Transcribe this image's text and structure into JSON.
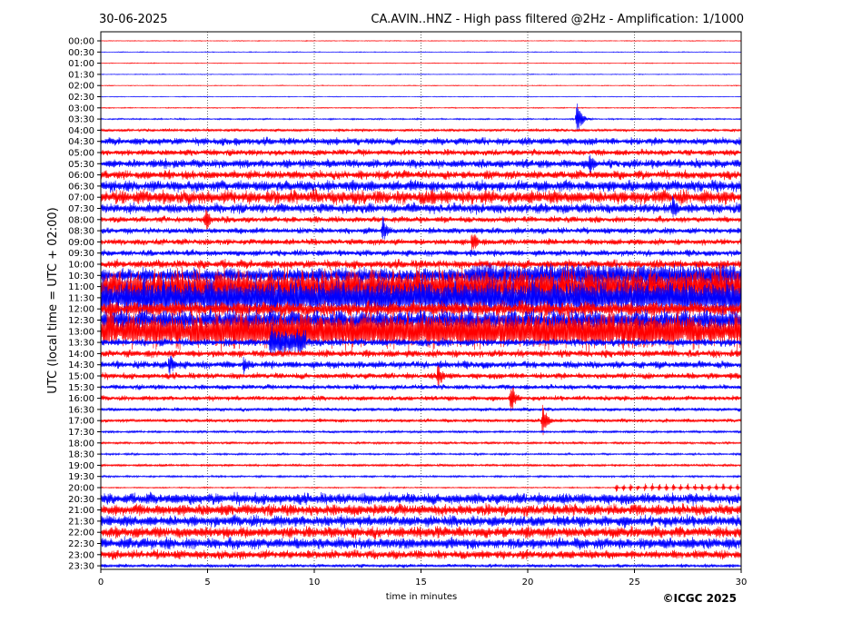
{
  "header": {
    "date": "30-06-2025",
    "title": "CA.AVIN..HNZ - High pass filtered @2Hz - Amplification: 1/1000"
  },
  "copyright": "©ICGC 2025",
  "chart_data": {
    "type": "line",
    "title": "CA.AVIN..HNZ - High pass filtered @2Hz - Amplification: 1/1000",
    "xlabel": "time in minutes",
    "ylabel": "UTC (local time = UTC + 02:00)",
    "xlim": [
      0,
      30
    ],
    "x_ticks": [
      "0",
      "5",
      "10",
      "15",
      "20",
      "25",
      "30"
    ],
    "grid": "vertical dotted lines at 5-minute ticks",
    "row_labels": [
      "00:00",
      "00:30",
      "01:00",
      "01:30",
      "02:00",
      "02:30",
      "03:00",
      "03:30",
      "04:00",
      "04:30",
      "05:00",
      "05:30",
      "06:00",
      "06:30",
      "07:00",
      "07:30",
      "08:00",
      "08:30",
      "09:00",
      "09:30",
      "10:00",
      "10:30",
      "11:00",
      "11:30",
      "12:00",
      "12:30",
      "13:00",
      "13:30",
      "14:00",
      "14:30",
      "15:00",
      "15:30",
      "16:00",
      "16:30",
      "17:00",
      "17:30",
      "18:00",
      "18:30",
      "19:00",
      "19:30",
      "20:00",
      "20:30",
      "21:00",
      "21:30",
      "22:00",
      "22:30",
      "23:00",
      "23:30"
    ],
    "row_colors": [
      "#ff0000",
      "#0000ff"
    ],
    "noise_amplitude": [
      0.3,
      0.3,
      0.3,
      0.3,
      0.3,
      0.3,
      0.4,
      0.6,
      1.2,
      3.0,
      2.5,
      3.5,
      3.5,
      4.5,
      5.5,
      4.0,
      2.5,
      2.5,
      2.5,
      2.5,
      3.5,
      6.0,
      14.0,
      14.0,
      6.0,
      8.0,
      14.0,
      3.0,
      3.0,
      3.0,
      2.5,
      2.0,
      2.0,
      1.5,
      1.5,
      1.0,
      1.0,
      0.8,
      1.0,
      0.8,
      0.5,
      4.5,
      4.5,
      4.5,
      4.5,
      4.5,
      3.5,
      1.5
    ],
    "events": [
      {
        "row": "03:30",
        "minute": 22.3,
        "amplitude": 20
      },
      {
        "row": "04:30",
        "minute": 6.3,
        "amplitude": 7
      },
      {
        "row": "04:30",
        "minute": 11.0,
        "amplitude": 6
      },
      {
        "row": "05:30",
        "minute": 3.0,
        "amplitude": 8
      },
      {
        "row": "05:30",
        "minute": 22.9,
        "amplitude": 16
      },
      {
        "row": "06:30",
        "minute": 11.8,
        "amplitude": 8
      },
      {
        "row": "07:00",
        "minute": 15.5,
        "amplitude": 14
      },
      {
        "row": "07:30",
        "minute": 26.8,
        "amplitude": 18
      },
      {
        "row": "08:00",
        "minute": 4.9,
        "amplitude": 16
      },
      {
        "row": "08:30",
        "minute": 13.2,
        "amplitude": 18
      },
      {
        "row": "09:00",
        "minute": 17.4,
        "amplitude": 16
      },
      {
        "row": "12:00",
        "minute": 0.5,
        "amplitude": 14
      },
      {
        "row": "13:30",
        "minute": 8.0,
        "amplitude": 22
      },
      {
        "row": "14:30",
        "minute": 3.2,
        "amplitude": 16
      },
      {
        "row": "14:30",
        "minute": 6.7,
        "amplitude": 12
      },
      {
        "row": "15:00",
        "minute": 15.8,
        "amplitude": 16
      },
      {
        "row": "16:00",
        "minute": 19.2,
        "amplitude": 22
      },
      {
        "row": "16:00",
        "minute": 9.9,
        "amplitude": 4
      },
      {
        "row": "17:00",
        "minute": 20.7,
        "amplitude": 20
      }
    ],
    "active_segments": [
      {
        "row": "10:30",
        "from": 17.2,
        "to": 30,
        "amplitude": 14
      },
      {
        "row": "11:00",
        "from": 0,
        "to": 1,
        "amplitude": 12
      },
      {
        "row": "11:00",
        "from": 10.5,
        "to": 30,
        "amplitude": 16
      },
      {
        "row": "11:30",
        "from": 0.3,
        "to": 30,
        "amplitude": 16
      },
      {
        "row": "12:30",
        "from": 27.2,
        "to": 30,
        "amplitude": 10
      },
      {
        "row": "13:00",
        "from": 0,
        "to": 3.2,
        "amplitude": 14
      },
      {
        "row": "13:00",
        "from": 4.6,
        "to": 27.0,
        "amplitude": 20
      },
      {
        "row": "13:30",
        "from": 7.9,
        "to": 9.6,
        "amplitude": 16
      }
    ],
    "periodic_pulses": [
      {
        "row": "20:00",
        "from": 24.1,
        "to": 30,
        "amplitude": 5
      },
      {
        "row": "20:30",
        "from": 0,
        "to": 30,
        "amplitude": 5
      },
      {
        "row": "21:00",
        "from": 0,
        "to": 30,
        "amplitude": 5
      },
      {
        "row": "21:30",
        "from": 0,
        "to": 30,
        "amplitude": 5
      },
      {
        "row": "22:00",
        "from": 0,
        "to": 30,
        "amplitude": 5
      },
      {
        "row": "22:30",
        "from": 0,
        "to": 30,
        "amplitude": 5
      },
      {
        "row": "23:00",
        "from": 0,
        "to": 30,
        "amplitude": 4
      },
      {
        "row": "23:30",
        "from": 0,
        "to": 30,
        "amplitude": 1
      }
    ]
  }
}
